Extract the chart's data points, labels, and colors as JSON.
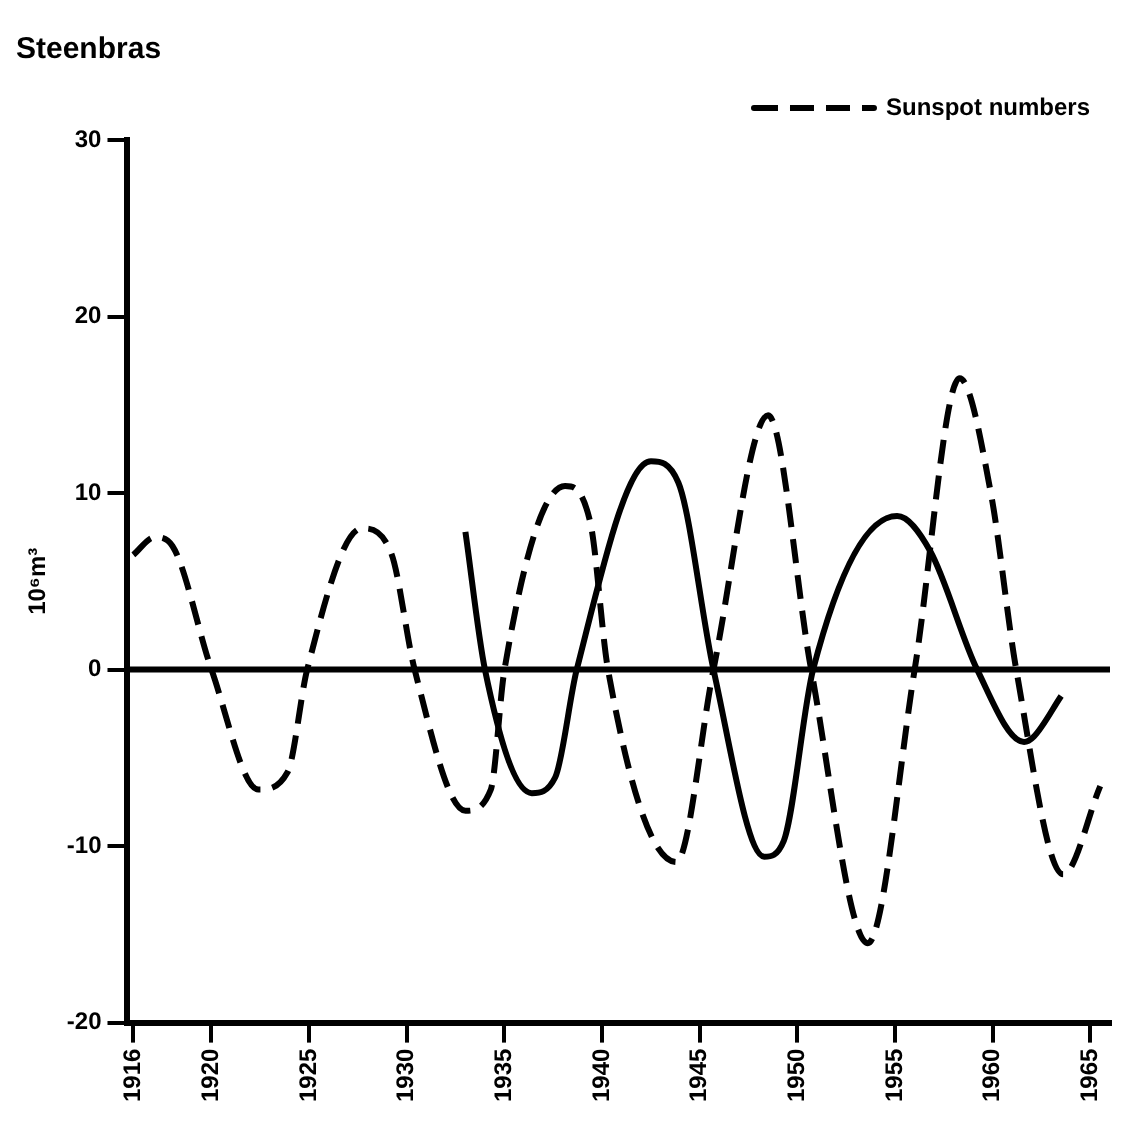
{
  "chart_data": {
    "type": "line",
    "title": "Steenbras",
    "ylabel": "10⁶m³",
    "xlim": [
      1915.7,
      1966
    ],
    "xticks": [
      {
        "value": 1916,
        "label": "1916"
      },
      1920,
      1925,
      1930,
      1935,
      1940,
      1945,
      1950,
      1955,
      1960,
      1965
    ],
    "ylim": [
      -20,
      30
    ],
    "yticks": [
      -20,
      -10,
      0,
      10,
      20,
      30
    ],
    "grid": false,
    "legend": "top right",
    "marker": "none",
    "ref_lines": [
      {
        "axis": "y",
        "value": 0,
        "color": "#000000",
        "line_style": "solid"
      }
    ],
    "series": [
      {
        "name": "Sunspot numbers",
        "color": "#000000",
        "line_style": "dashed",
        "x": [
          1916,
          1917.1,
          1918,
          1920,
          1922.4,
          1923.9,
          1924.9,
          1927.7,
          1929.2,
          1930.4,
          1933,
          1934.3,
          1935,
          1938.1,
          1939.4,
          1940.3,
          1943.8,
          1945.7,
          1948.5,
          1950.7,
          1953.6,
          1956,
          1958.3,
          1959.9,
          1961.2,
          1963.6,
          1965.5
        ],
        "values": [
          6.5,
          7.5,
          7,
          0,
          -6.8,
          -5.8,
          0,
          8,
          6.6,
          0,
          -8,
          -6.8,
          0,
          10.4,
          8.3,
          0,
          -10.9,
          0,
          14.4,
          0,
          -15.5,
          0,
          16.5,
          10,
          0,
          -11.6,
          -6.6
        ]
      },
      {
        "color": "#000000",
        "line_style": "solid",
        "x": [
          1933,
          1934,
          1936.4,
          1937.6,
          1938.7,
          1942.5,
          1943.9,
          1945.7,
          1948.3,
          1949.3,
          1950.8,
          1955.1,
          1956.8,
          1959.2,
          1961.6,
          1962.1,
          1963.5
        ],
        "values": [
          7.8,
          0,
          -7,
          -6.1,
          0,
          11.8,
          10.6,
          0,
          -10.6,
          -9.7,
          0,
          8.7,
          6.7,
          0,
          -4.1,
          -3.8,
          -1.5
        ]
      }
    ]
  }
}
